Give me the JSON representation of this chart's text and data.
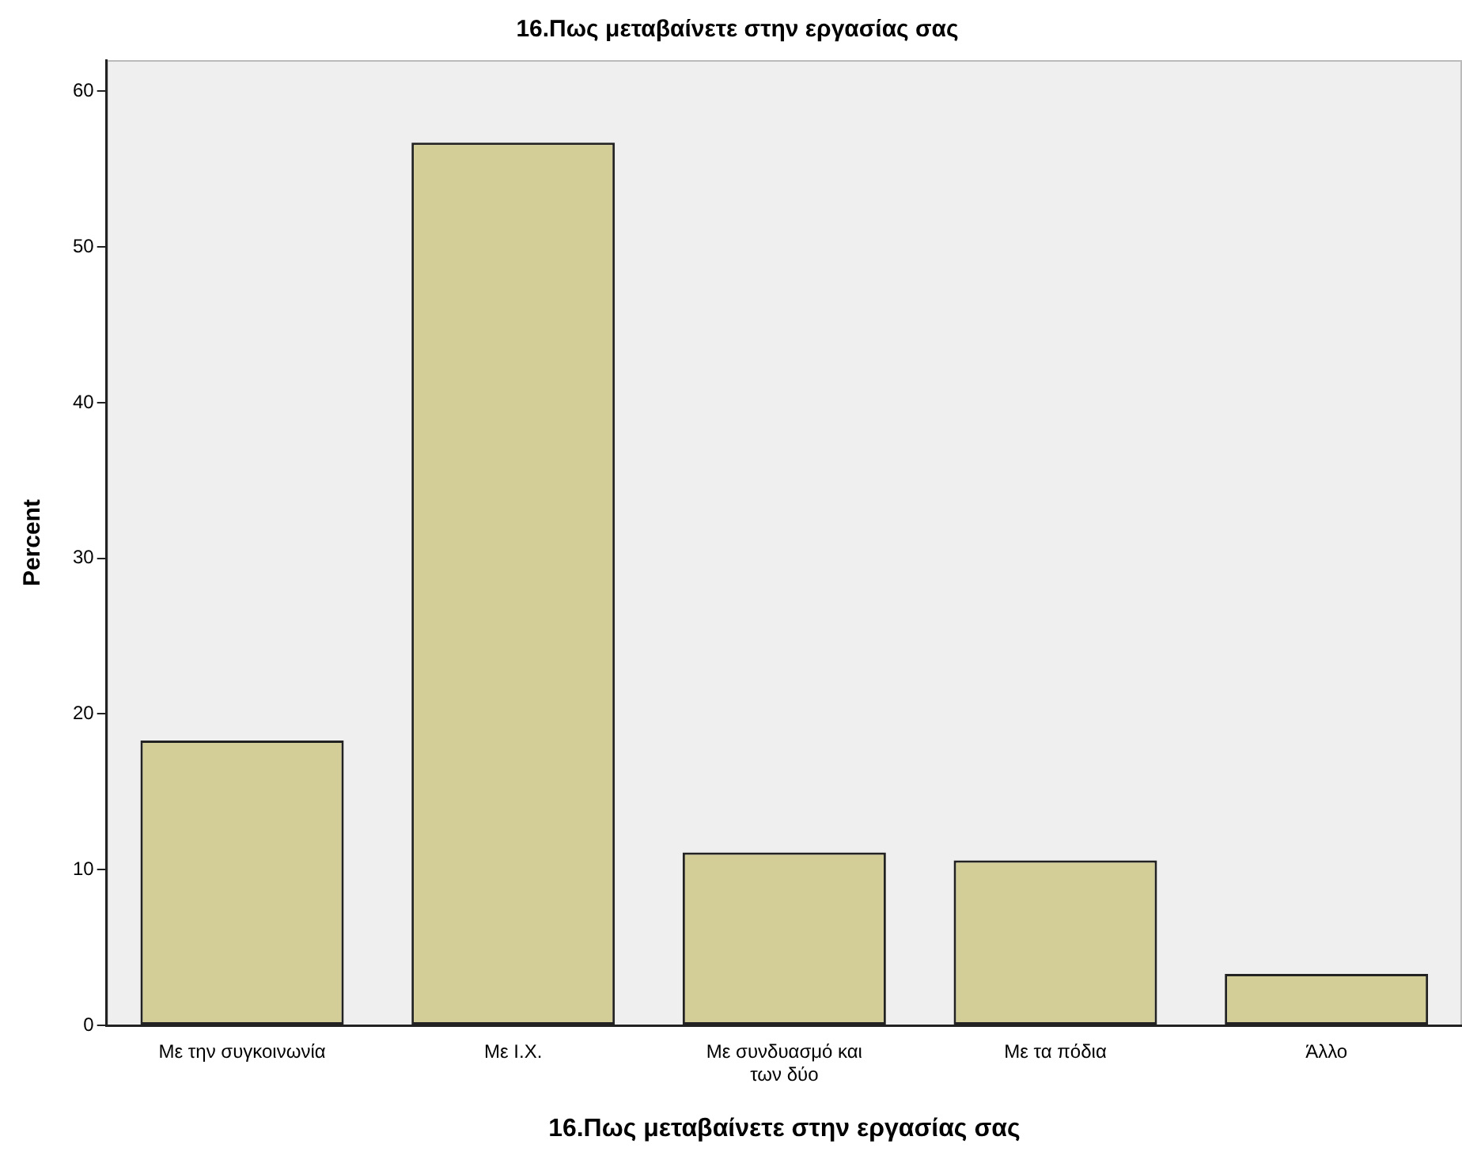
{
  "chart_data": {
    "type": "bar",
    "title": "16.Πως μεταβαίνετε στην εργασίας σας",
    "xlabel": "16.Πως μεταβαίνετε στην εργασίας σας",
    "ylabel": "Percent",
    "categories": [
      "Με την συγκοινωνία",
      "Με Ι.Χ.",
      "Με συνδυασμό και των δύο",
      "Με τα πόδια",
      "Άλλο"
    ],
    "values": [
      18.3,
      56.7,
      11.1,
      10.6,
      3.3
    ],
    "color": "#d3ce97",
    "ylim": [
      0,
      62
    ],
    "yticks": [
      0,
      10,
      20,
      30,
      40,
      50,
      60
    ],
    "grid": false,
    "legend": false
  }
}
